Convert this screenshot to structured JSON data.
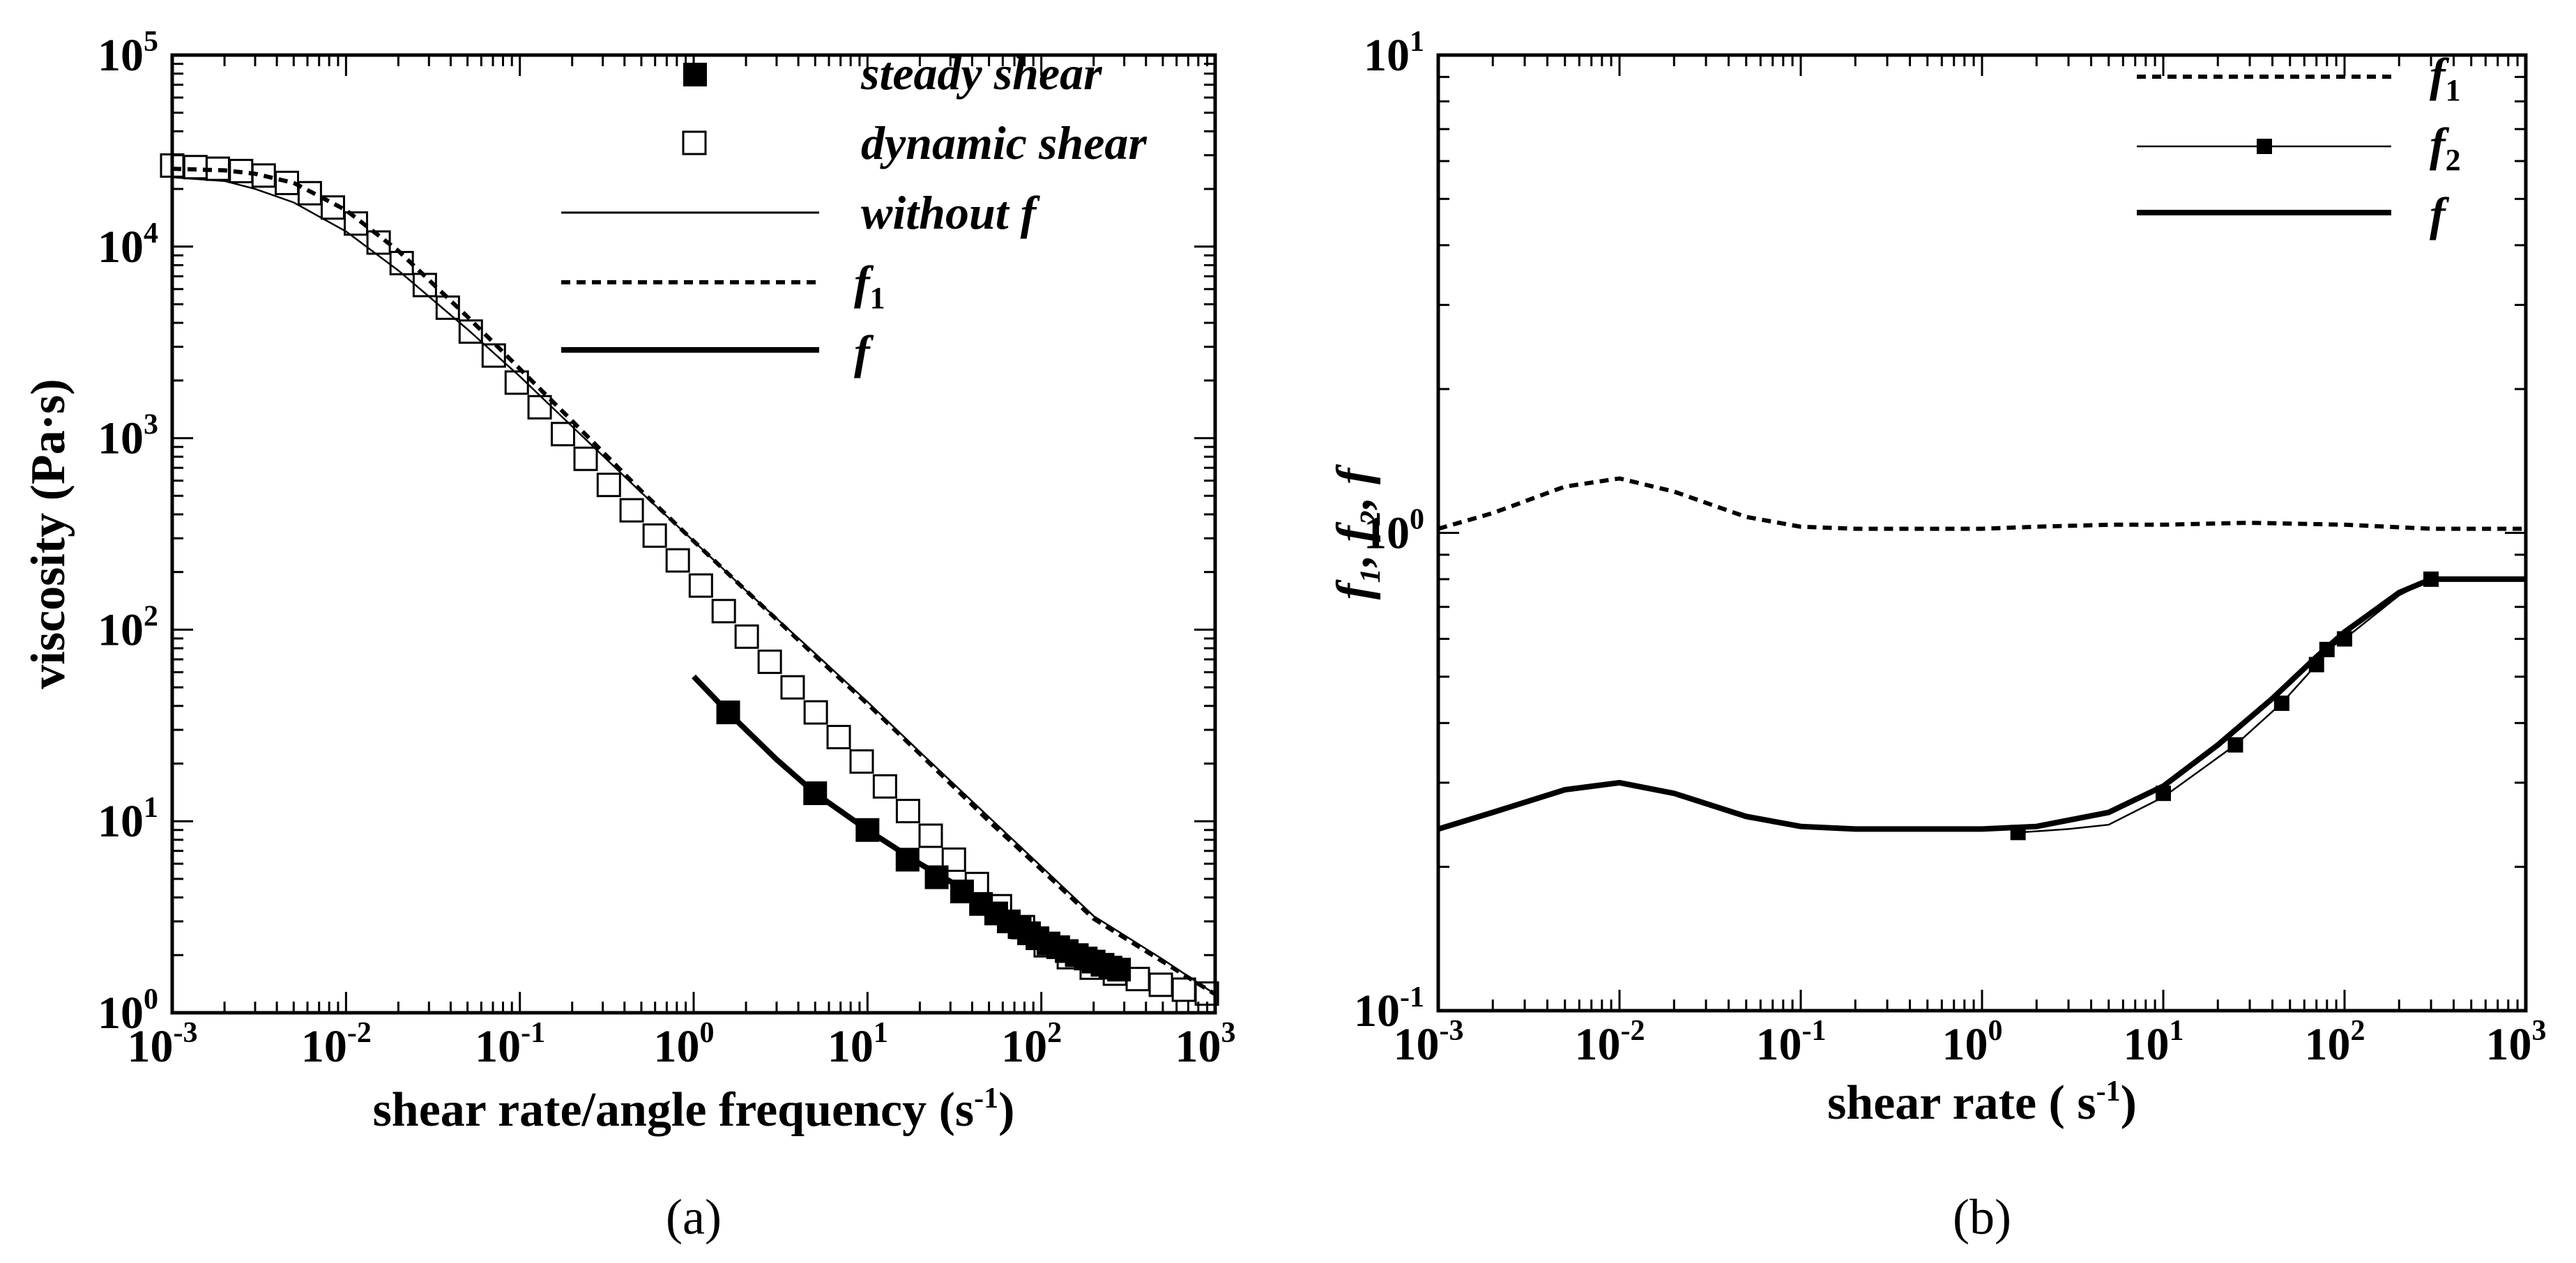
{
  "chart_data": [
    {
      "type": "line",
      "panel_label": "(a)",
      "xlabel": "shear rate/angle frequency (s",
      "xlabel_sup": "-1",
      "xlabel_close": ")",
      "ylabel": "viscosity (Pa·s)",
      "xscale": "log",
      "yscale": "log",
      "xlim": [
        0.001,
        1000
      ],
      "ylim": [
        1,
        100000
      ],
      "x_ticks": [
        {
          "base": "10",
          "exp": "-3"
        },
        {
          "base": "10",
          "exp": "-2"
        },
        {
          "base": "10",
          "exp": "-1"
        },
        {
          "base": "10",
          "exp": "0"
        },
        {
          "base": "10",
          "exp": "1"
        },
        {
          "base": "10",
          "exp": "2"
        },
        {
          "base": "10",
          "exp": "3"
        }
      ],
      "y_ticks": [
        {
          "base": "10",
          "exp": "0"
        },
        {
          "base": "10",
          "exp": "1"
        },
        {
          "base": "10",
          "exp": "2"
        },
        {
          "base": "10",
          "exp": "3"
        },
        {
          "base": "10",
          "exp": "4"
        },
        {
          "base": "10",
          "exp": "5"
        }
      ],
      "legend": {
        "position": "top-right",
        "entries": [
          {
            "label": "steady shear",
            "sub": ""
          },
          {
            "label": "dynamic shear",
            "sub": ""
          },
          {
            "label": "without f",
            "sub": ""
          },
          {
            "label": "f",
            "sub": "1"
          },
          {
            "label": "f",
            "sub": ""
          }
        ]
      },
      "series": [
        {
          "name": "steady shear",
          "style": "filled-square",
          "x": [
            1.58,
            5,
            10,
            17,
            25,
            35,
            45,
            55,
            65,
            75,
            85,
            95,
            110,
            125,
            140,
            160,
            180,
            200,
            225,
            250,
            280
          ],
          "y": [
            37,
            14,
            9,
            6.3,
            5.1,
            4.3,
            3.7,
            3.3,
            3.0,
            2.8,
            2.6,
            2.45,
            2.3,
            2.2,
            2.1,
            2.0,
            1.92,
            1.85,
            1.78,
            1.72,
            1.68
          ]
        },
        {
          "name": "dynamic shear",
          "style": "open-square",
          "x": [
            0.001,
            0.00136,
            0.00183,
            0.00249,
            0.00336,
            0.00457,
            0.00619,
            0.0084,
            0.0114,
            0.0154,
            0.0209,
            0.0284,
            0.0385,
            0.0522,
            0.0708,
            0.096,
            0.13,
            0.177,
            0.239,
            0.325,
            0.44,
            0.597,
            0.81,
            1.1,
            1.49,
            2.02,
            2.74,
            3.71,
            5.04,
            6.83,
            9.26,
            12.6,
            17.1,
            23.1,
            31.4,
            42.6,
            57.8,
            78.4,
            106,
            144,
            195,
            265,
            359,
            487,
            661,
            896
          ],
          "y": [
            26500,
            26000,
            25500,
            24800,
            23500,
            21500,
            19000,
            16000,
            13200,
            10500,
            8200,
            6300,
            4800,
            3600,
            2700,
            1950,
            1450,
            1050,
            780,
            570,
            420,
            310,
            230,
            170,
            125,
            92,
            68,
            50,
            37,
            27.5,
            20.5,
            15.2,
            11.3,
            8.4,
            6.3,
            4.7,
            3.6,
            2.8,
            2.25,
            1.95,
            1.72,
            1.6,
            1.5,
            1.4,
            1.32,
            1.26
          ]
        },
        {
          "name": "without f",
          "style": "thin-line",
          "x": [
            0.001,
            0.002,
            0.003,
            0.005,
            0.01,
            0.02,
            0.05,
            0.1,
            0.2,
            0.5,
            1,
            2,
            5,
            10,
            20,
            50,
            100,
            200,
            500,
            1000
          ],
          "y": [
            23000,
            22000,
            20000,
            17000,
            12000,
            7500,
            3700,
            2100,
            1150,
            520,
            290,
            160,
            75,
            42,
            23,
            10.5,
            5.8,
            3.2,
            1.9,
            1.25
          ]
        },
        {
          "name": "f1",
          "style": "dashed-line",
          "x": [
            0.001,
            0.002,
            0.003,
            0.005,
            0.01,
            0.02,
            0.05,
            0.1,
            0.2,
            0.5,
            1,
            2,
            5,
            10,
            20,
            50,
            100,
            200,
            500,
            1000
          ],
          "y": [
            25500,
            25000,
            24000,
            21500,
            15500,
            9500,
            4300,
            2300,
            1230,
            530,
            290,
            160,
            73,
            41,
            22.5,
            10,
            5.6,
            3.1,
            1.85,
            1.25
          ]
        },
        {
          "name": "f",
          "style": "thick-line",
          "x": [
            1,
            1.58,
            3,
            5,
            10,
            20,
            50,
            100,
            200,
            280
          ],
          "y": [
            57,
            37,
            21,
            14,
            9,
            6,
            3.7,
            2.5,
            1.9,
            1.68
          ]
        }
      ]
    },
    {
      "type": "line",
      "panel_label": "(b)",
      "xlabel": "shear rate ( s",
      "xlabel_sup": "-1",
      "xlabel_close": ")",
      "ylabel": "f₁, f₂, f",
      "xscale": "log",
      "yscale": "log",
      "xlim": [
        0.001,
        1000
      ],
      "ylim": [
        0.1,
        10
      ],
      "x_ticks": [
        {
          "base": "10",
          "exp": "-3"
        },
        {
          "base": "10",
          "exp": "-2"
        },
        {
          "base": "10",
          "exp": "-1"
        },
        {
          "base": "10",
          "exp": "0"
        },
        {
          "base": "10",
          "exp": "1"
        },
        {
          "base": "10",
          "exp": "2"
        },
        {
          "base": "10",
          "exp": "3"
        }
      ],
      "y_ticks": [
        {
          "base": "10",
          "exp": "-1"
        },
        {
          "base": "10",
          "exp": "0"
        },
        {
          "base": "10",
          "exp": "1"
        }
      ],
      "legend": {
        "position": "top-right",
        "entries": [
          {
            "label": "f",
            "sub": "1"
          },
          {
            "label": "f",
            "sub": "2"
          },
          {
            "label": "f",
            "sub": ""
          }
        ]
      },
      "series": [
        {
          "name": "f1",
          "style": "dashed-line",
          "x": [
            0.001,
            0.002,
            0.005,
            0.01,
            0.02,
            0.05,
            0.1,
            0.2,
            0.5,
            1,
            2,
            5,
            10,
            30,
            100,
            300,
            1000
          ],
          "y": [
            1.02,
            1.1,
            1.25,
            1.3,
            1.22,
            1.08,
            1.03,
            1.02,
            1.02,
            1.02,
            1.03,
            1.04,
            1.04,
            1.05,
            1.04,
            1.02,
            1.02
          ]
        },
        {
          "name": "f2",
          "style": "thin-line-markers",
          "x": [
            1.58,
            3,
            5,
            10,
            25,
            45,
            70,
            80,
            100,
            200,
            300,
            500,
            1000
          ],
          "y": [
            0.236,
            0.24,
            0.245,
            0.28,
            0.36,
            0.44,
            0.53,
            0.57,
            0.6,
            0.74,
            0.8,
            0.8,
            0.8
          ],
          "marker_x": [
            1.58,
            10,
            25,
            45,
            70,
            80,
            100,
            300
          ],
          "marker_y": [
            0.236,
            0.285,
            0.36,
            0.44,
            0.53,
            0.57,
            0.6,
            0.8
          ]
        },
        {
          "name": "f",
          "style": "thick-line",
          "x": [
            0.001,
            0.002,
            0.005,
            0.01,
            0.02,
            0.05,
            0.1,
            0.2,
            0.5,
            1,
            2,
            5,
            10,
            20,
            40,
            70,
            100,
            200,
            300,
            500,
            1000
          ],
          "y": [
            0.24,
            0.26,
            0.29,
            0.3,
            0.285,
            0.255,
            0.243,
            0.24,
            0.24,
            0.24,
            0.243,
            0.26,
            0.295,
            0.36,
            0.45,
            0.55,
            0.62,
            0.75,
            0.8,
            0.8,
            0.8
          ]
        }
      ]
    }
  ]
}
